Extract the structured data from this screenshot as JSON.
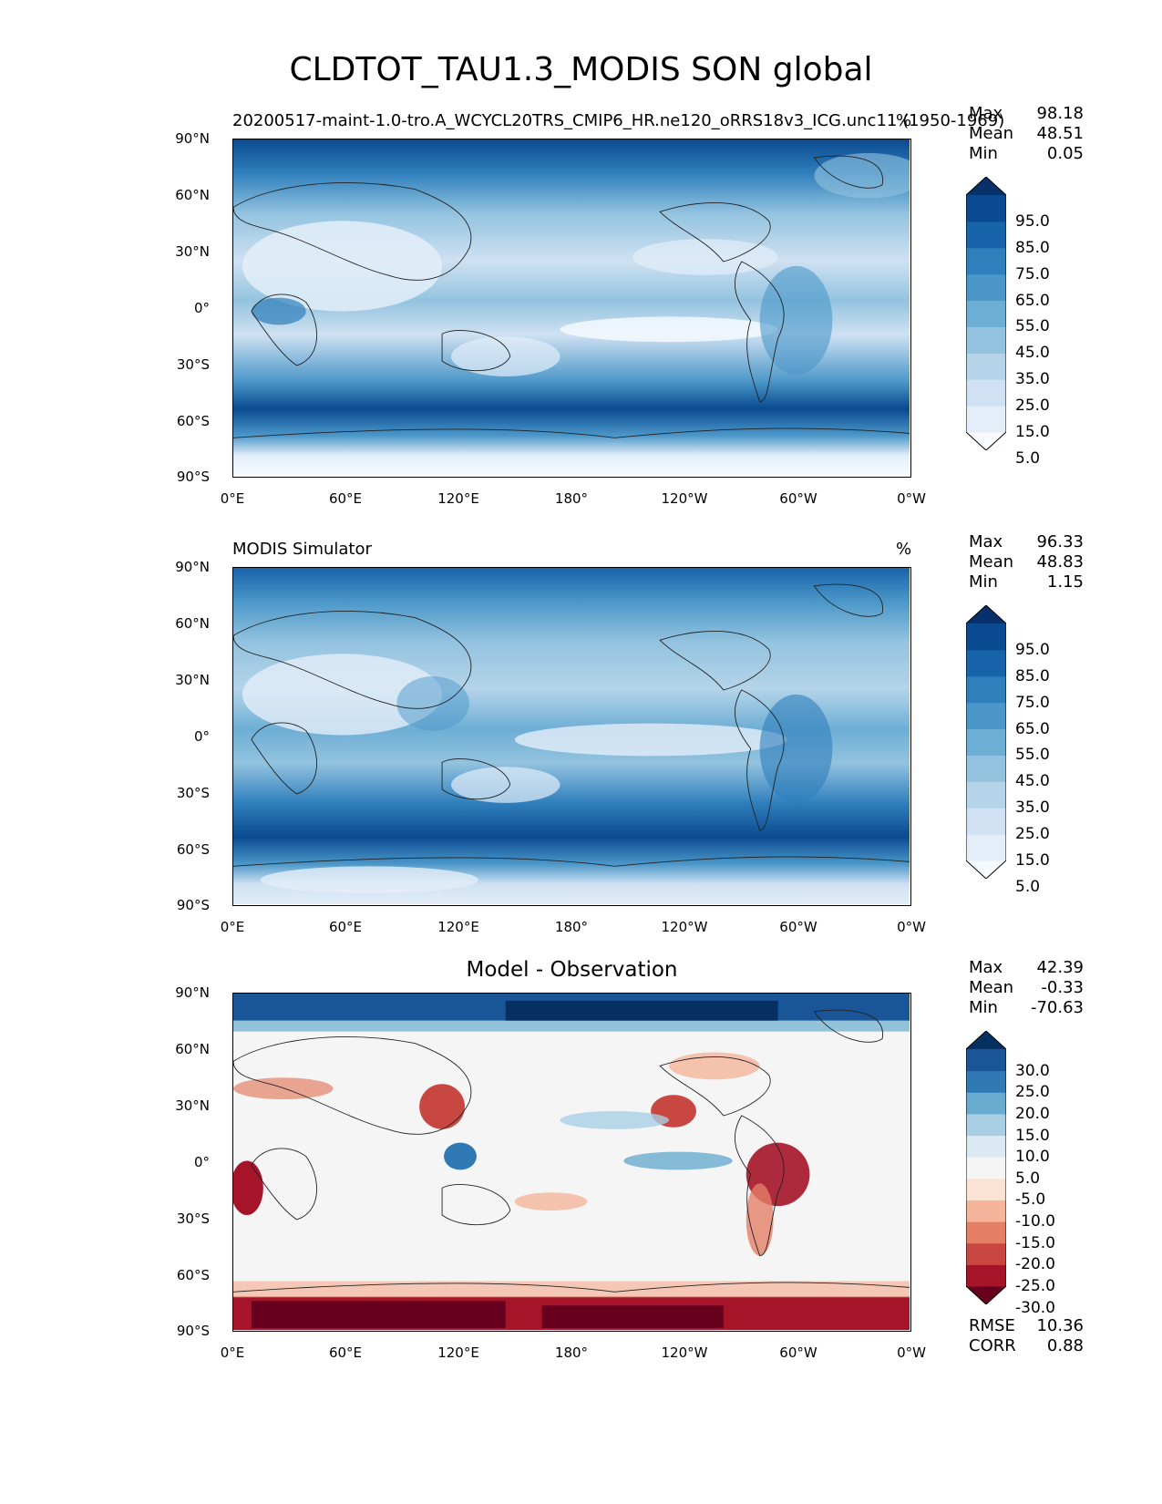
{
  "title": "CLDTOT_TAU1.3_MODIS SON global",
  "panels": [
    {
      "subtitle": "20200517-maint-1.0-tro.A_WCYCL20TRS_CMIP6_HR.ne120_oRRS18v3_ICG.unc11 (1950-1969)",
      "units": "%",
      "stats": {
        "max_label": "Max",
        "max": "98.18",
        "mean_label": "Mean",
        "mean": "48.51",
        "min_label": "Min",
        "min": "0.05"
      },
      "colorbar_ticks": [
        "95.0",
        "85.0",
        "75.0",
        "65.0",
        "55.0",
        "45.0",
        "35.0",
        "25.0",
        "15.0",
        "5.0"
      ],
      "colorbar_colors": [
        "#f7fbff",
        "#e3eef9",
        "#cfe1f2",
        "#b5d4e9",
        "#93c3df",
        "#6daed5",
        "#4b97c9",
        "#2f7fbc",
        "#1864aa",
        "#0a4a90",
        "#08306b"
      ]
    },
    {
      "subtitle": "MODIS Simulator",
      "units": "%",
      "stats": {
        "max_label": "Max",
        "max": "96.33",
        "mean_label": "Mean",
        "mean": "48.83",
        "min_label": "Min",
        "min": "1.15"
      },
      "colorbar_ticks": [
        "95.0",
        "85.0",
        "75.0",
        "65.0",
        "55.0",
        "45.0",
        "35.0",
        "25.0",
        "15.0",
        "5.0"
      ],
      "colorbar_colors": [
        "#f7fbff",
        "#e3eef9",
        "#cfe1f2",
        "#b5d4e9",
        "#93c3df",
        "#6daed5",
        "#4b97c9",
        "#2f7fbc",
        "#1864aa",
        "#0a4a90",
        "#08306b"
      ]
    },
    {
      "subtitle": "Model - Observation",
      "units": "",
      "stats": {
        "max_label": "Max",
        "max": "42.39",
        "mean_label": "Mean",
        "mean": "-0.33",
        "min_label": "Min",
        "min": "-70.63"
      },
      "colorbar_ticks": [
        "30.0",
        "25.0",
        "20.0",
        "15.0",
        "10.0",
        "5.0",
        "-5.0",
        "-10.0",
        "-15.0",
        "-20.0",
        "-25.0",
        "-30.0"
      ],
      "colorbar_colors": [
        "#67001f",
        "#a51429",
        "#c94741",
        "#e48066",
        "#f5b59b",
        "#fbe3d4",
        "#f5f5f5",
        "#dbeaf2",
        "#a9cfe5",
        "#6aacd0",
        "#2f79b5",
        "#1a5597",
        "#053061"
      ],
      "metrics": {
        "rmse_label": "RMSE",
        "rmse": "10.36",
        "corr_label": "CORR",
        "corr": "0.88"
      }
    }
  ],
  "axes": {
    "y_ticks": [
      "90°N",
      "60°N",
      "30°N",
      "0°",
      "30°S",
      "60°S",
      "90°S"
    ],
    "x_ticks": [
      "0°E",
      "60°E",
      "120°E",
      "180°",
      "120°W",
      "60°W",
      "0°W"
    ]
  },
  "chart_data": {
    "type": "map",
    "projection": "PlateCarree",
    "lon_range": [
      0,
      360
    ],
    "lat_range": [
      -90,
      90
    ],
    "variable": "CLDTOT_TAU1.3_MODIS",
    "season": "SON",
    "region": "global",
    "panels": [
      {
        "name": "test",
        "max": 98.18,
        "mean": 48.51,
        "min": 0.05,
        "colorscale": "Blues",
        "levels": [
          5,
          15,
          25,
          35,
          45,
          55,
          65,
          75,
          85,
          95
        ]
      },
      {
        "name": "reference",
        "max": 96.33,
        "mean": 48.83,
        "min": 1.15,
        "colorscale": "Blues",
        "levels": [
          5,
          15,
          25,
          35,
          45,
          55,
          65,
          75,
          85,
          95
        ]
      },
      {
        "name": "diff",
        "max": 42.39,
        "mean": -0.33,
        "min": -70.63,
        "rmse": 10.36,
        "corr": 0.88,
        "colorscale": "RdBu",
        "levels": [
          -30,
          -25,
          -20,
          -15,
          -10,
          -5,
          5,
          10,
          15,
          20,
          25,
          30
        ]
      }
    ]
  }
}
